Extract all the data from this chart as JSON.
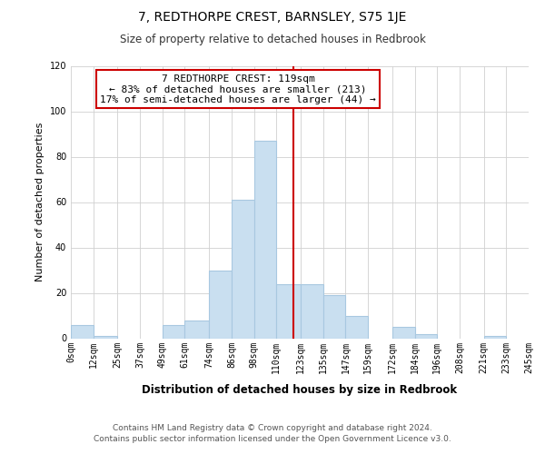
{
  "title": "7, REDTHORPE CREST, BARNSLEY, S75 1JE",
  "subtitle": "Size of property relative to detached houses in Redbrook",
  "xlabel": "Distribution of detached houses by size in Redbrook",
  "ylabel": "Number of detached properties",
  "bin_edges": [
    0,
    12,
    25,
    37,
    49,
    61,
    74,
    86,
    98,
    110,
    123,
    135,
    147,
    159,
    172,
    184,
    196,
    208,
    221,
    233,
    245
  ],
  "bar_heights": [
    6,
    1,
    0,
    0,
    6,
    8,
    30,
    61,
    87,
    24,
    24,
    19,
    10,
    0,
    5,
    2,
    0,
    0,
    1,
    0
  ],
  "bar_color": "#c9dff0",
  "bar_edge_color": "#a8c8e0",
  "vline_x": 119,
  "vline_color": "#cc0000",
  "annotation_line0": "7 REDTHORPE CREST: 119sqm",
  "annotation_line1": "← 83% of detached houses are smaller (213)",
  "annotation_line2": "17% of semi-detached houses are larger (44) →",
  "annotation_box_color": "#ffffff",
  "annotation_box_edge": "#cc0000",
  "tick_labels": [
    "0sqm",
    "12sqm",
    "25sqm",
    "37sqm",
    "49sqm",
    "61sqm",
    "74sqm",
    "86sqm",
    "98sqm",
    "110sqm",
    "123sqm",
    "135sqm",
    "147sqm",
    "159sqm",
    "172sqm",
    "184sqm",
    "196sqm",
    "208sqm",
    "221sqm",
    "233sqm",
    "245sqm"
  ],
  "ylim": [
    0,
    120
  ],
  "yticks": [
    0,
    20,
    40,
    60,
    80,
    100,
    120
  ],
  "footer1": "Contains HM Land Registry data © Crown copyright and database right 2024.",
  "footer2": "Contains public sector information licensed under the Open Government Licence v3.0.",
  "title_fontsize": 10,
  "subtitle_fontsize": 8.5,
  "ylabel_fontsize": 8,
  "xlabel_fontsize": 8.5,
  "annot_fontsize": 8,
  "footer_fontsize": 6.5,
  "tick_fontsize": 7
}
